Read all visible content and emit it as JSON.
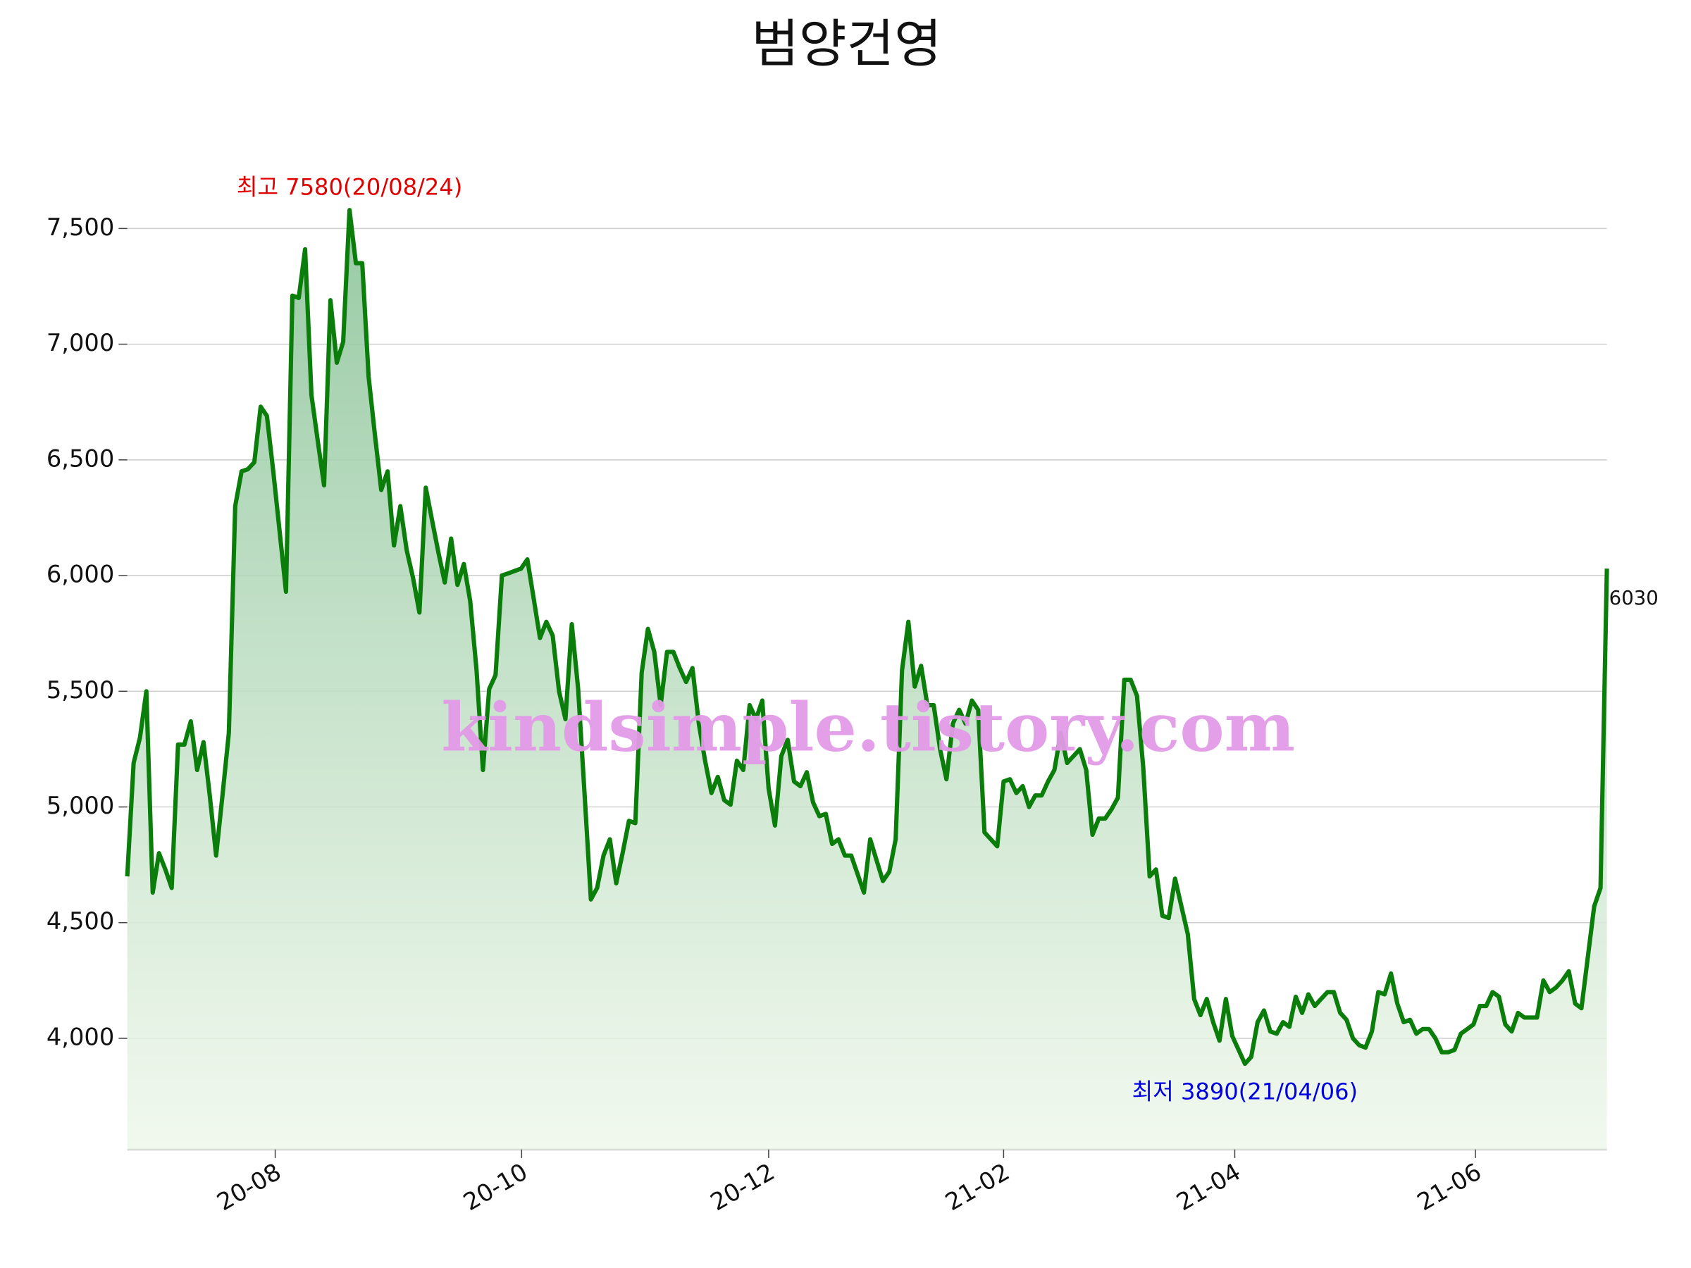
{
  "chart_data": {
    "type": "line",
    "title": "범양건영",
    "values": [
      4700,
      5190,
      5300,
      5500,
      4630,
      4800,
      4730,
      4650,
      5270,
      5270,
      5370,
      5160,
      5280,
      5050,
      4790,
      5050,
      5320,
      6300,
      6450,
      6460,
      6490,
      6730,
      6690,
      6450,
      6190,
      5930,
      7210,
      7200,
      7410,
      6780,
      6580,
      6390,
      7190,
      6920,
      7010,
      7580,
      7350,
      7350,
      6860,
      6610,
      6370,
      6450,
      6130,
      6300,
      6110,
      5990,
      5840,
      6380,
      6240,
      6100,
      5970,
      6160,
      5960,
      6050,
      5890,
      5590,
      5160,
      5510,
      5570,
      6000,
      6010,
      6020,
      6030,
      6070,
      5900,
      5730,
      5800,
      5740,
      5500,
      5380,
      5790,
      5510,
      5060,
      4600,
      4650,
      4790,
      4860,
      4670,
      4800,
      4940,
      4930,
      5580,
      5770,
      5670,
      5440,
      5670,
      5670,
      5600,
      5540,
      5600,
      5360,
      5200,
      5060,
      5130,
      5030,
      5010,
      5200,
      5160,
      5440,
      5380,
      5460,
      5080,
      4920,
      5220,
      5290,
      5110,
      5090,
      5150,
      5020,
      4960,
      4970,
      4840,
      4860,
      4790,
      4790,
      4710,
      4630,
      4860,
      4770,
      4680,
      4720,
      4860,
      5590,
      5800,
      5520,
      5610,
      5440,
      5440,
      5250,
      5120,
      5360,
      5420,
      5360,
      5460,
      5420,
      4890,
      4860,
      4830,
      5110,
      5120,
      5060,
      5090,
      5000,
      5050,
      5050,
      5110,
      5160,
      5320,
      5190,
      5220,
      5250,
      5160,
      4880,
      4950,
      4950,
      4990,
      5040,
      5550,
      5550,
      5480,
      5170,
      4700,
      4730,
      4530,
      4520,
      4690,
      4570,
      4450,
      4170,
      4100,
      4170,
      4070,
      3990,
      4170,
      4010,
      3950,
      3890,
      3920,
      4070,
      4120,
      4030,
      4020,
      4070,
      4050,
      4180,
      4110,
      4190,
      4140,
      4170,
      4200,
      4200,
      4110,
      4080,
      4000,
      3970,
      3960,
      4030,
      4200,
      4190,
      4280,
      4150,
      4070,
      4080,
      4020,
      4040,
      4040,
      4000,
      3940,
      3940,
      3950,
      4020,
      4040,
      4060,
      4140,
      4140,
      4200,
      4180,
      4060,
      4030,
      4110,
      4090,
      4090,
      4090,
      4250,
      4200,
      4220,
      4250,
      4290,
      4150,
      4130,
      4350,
      4570,
      4650,
      6030
    ],
    "color": "#0a7d0a",
    "xlim": [
      0,
      233
    ],
    "xticks": [
      {
        "value": 23.3,
        "label": "20-08"
      },
      {
        "value": 62.1,
        "label": "20-10"
      },
      {
        "value": 101,
        "label": "20-12"
      },
      {
        "value": 138,
        "label": "21-02"
      },
      {
        "value": 174.4,
        "label": "21-04"
      },
      {
        "value": 212.3,
        "label": "21-06"
      }
    ],
    "ylim": [
      3520,
      7700
    ],
    "yticks": [
      {
        "value": 4000,
        "label": "4,000"
      },
      {
        "value": 4500,
        "label": "4,500"
      },
      {
        "value": 5000,
        "label": "5,000"
      },
      {
        "value": 5500,
        "label": "5,500"
      },
      {
        "value": 6000,
        "label": "6,000"
      },
      {
        "value": 6500,
        "label": "6,500"
      },
      {
        "value": 7000,
        "label": "7,000"
      },
      {
        "value": 7500,
        "label": "7,500"
      }
    ],
    "grid": true,
    "max_annotation": "최고 7580(20/08/24)",
    "min_annotation": "최저 3890(21/04/06)",
    "watermark": "kindsimple.tistory.com"
  }
}
